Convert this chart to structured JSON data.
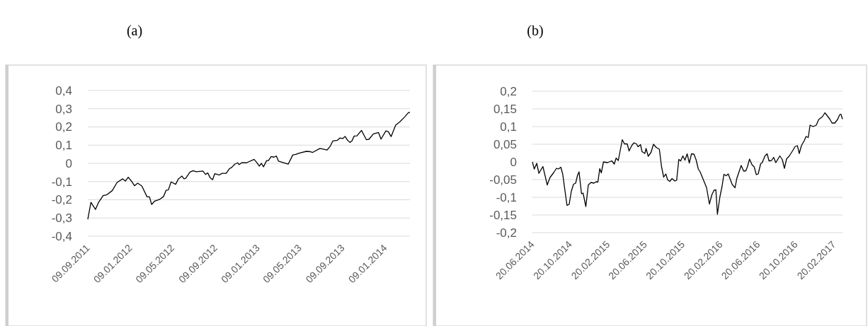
{
  "chart_data": [
    {
      "type": "line",
      "title": "(a)",
      "grid": "y",
      "xlim": [
        "2011-09-09",
        "2014-03-21"
      ],
      "ylim": [
        -0.4,
        0.4
      ],
      "xticks": [
        {
          "value": "2011-09-09",
          "label": "09.09.2011"
        },
        {
          "value": "2012-01-09",
          "label": "09.01.2012"
        },
        {
          "value": "2012-05-09",
          "label": "09.05.2012"
        },
        {
          "value": "2012-09-09",
          "label": "09.09.2012"
        },
        {
          "value": "2013-01-09",
          "label": "09.01.2013"
        },
        {
          "value": "2013-05-09",
          "label": "09.05.2013"
        },
        {
          "value": "2013-09-09",
          "label": "09.09.2013"
        },
        {
          "value": "2014-01-09",
          "label": "09.01.2014"
        }
      ],
      "yticks": [
        {
          "value": -0.4,
          "label": "-0,4"
        },
        {
          "value": -0.3,
          "label": "-0,3"
        },
        {
          "value": -0.2,
          "label": "-0,2"
        },
        {
          "value": -0.1,
          "label": "-0,1"
        },
        0,
        {
          "value": 0.1,
          "label": "0,1"
        },
        {
          "value": 0.2,
          "label": "0,2"
        },
        {
          "value": 0.3,
          "label": "0,3"
        },
        {
          "value": 0.4,
          "label": "0,4"
        }
      ],
      "series": [
        {
          "color": "#000000",
          "x": [
            "2011-09-09",
            "2011-09-18",
            "2011-10-01",
            "2011-10-10",
            "2011-10-23",
            "2011-11-03",
            "2011-11-18",
            "2011-12-02",
            "2011-12-18",
            "2011-12-26",
            "2012-01-03",
            "2012-01-12",
            "2012-01-21",
            "2012-01-30",
            "2012-02-11",
            "2012-02-26",
            "2012-03-04",
            "2012-03-10",
            "2012-03-19",
            "2012-04-01",
            "2012-04-13",
            "2012-04-21",
            "2012-04-27",
            "2012-05-05",
            "2012-05-18",
            "2012-05-26",
            "2012-06-05",
            "2012-06-11",
            "2012-06-16",
            "2012-06-28",
            "2012-07-07",
            "2012-07-16",
            "2012-08-04",
            "2012-08-12",
            "2012-08-18",
            "2012-08-25",
            "2012-09-01",
            "2012-09-07",
            "2012-09-20",
            "2012-09-28",
            "2012-10-10",
            "2012-10-19",
            "2012-10-26",
            "2012-11-04",
            "2012-11-12",
            "2012-11-16",
            "2012-11-24",
            "2012-12-07",
            "2012-12-29",
            "2013-01-05",
            "2013-01-13",
            "2013-01-19",
            "2013-01-25",
            "2013-02-03",
            "2013-02-08",
            "2013-02-16",
            "2013-02-24",
            "2013-03-03",
            "2013-03-09",
            "2013-04-06",
            "2013-04-19",
            "2013-04-27",
            "2013-05-09",
            "2013-05-28",
            "2013-06-09",
            "2013-06-15",
            "2013-07-06",
            "2013-07-26",
            "2013-08-04",
            "2013-08-12",
            "2013-08-25",
            "2013-09-01",
            "2013-09-09",
            "2013-09-16",
            "2013-09-23",
            "2013-09-30",
            "2013-10-06",
            "2013-10-12",
            "2013-10-20",
            "2013-11-02",
            "2013-11-16",
            "2013-11-24",
            "2013-12-06",
            "2013-12-21",
            "2013-12-28",
            "2014-01-11",
            "2014-01-18",
            "2014-01-26",
            "2014-02-08",
            "2014-02-20",
            "2014-03-06",
            "2014-03-16",
            "2014-03-21"
          ],
          "values": [
            -0.307,
            -0.214,
            -0.253,
            -0.214,
            -0.177,
            -0.172,
            -0.15,
            -0.105,
            -0.085,
            -0.097,
            -0.076,
            -0.097,
            -0.123,
            -0.109,
            -0.124,
            -0.184,
            -0.184,
            -0.226,
            -0.207,
            -0.199,
            -0.183,
            -0.147,
            -0.146,
            -0.102,
            -0.115,
            -0.085,
            -0.07,
            -0.085,
            -0.082,
            -0.048,
            -0.04,
            -0.046,
            -0.042,
            -0.061,
            -0.052,
            -0.079,
            -0.09,
            -0.057,
            -0.064,
            -0.055,
            -0.055,
            -0.03,
            -0.022,
            -0.004,
            0.003,
            -0.007,
            0.004,
            0.003,
            0.022,
            0.006,
            -0.015,
            0,
            -0.019,
            0.015,
            0.015,
            0.037,
            0.034,
            0.04,
            0.012,
            -0.004,
            0.046,
            0.049,
            0.057,
            0.066,
            0.064,
            0.06,
            0.082,
            0.073,
            0.093,
            0.123,
            0.127,
            0.139,
            0.136,
            0.148,
            0.127,
            0.115,
            0.124,
            0.15,
            0.151,
            0.181,
            0.13,
            0.133,
            0.162,
            0.169,
            0.133,
            0.178,
            0.174,
            0.147,
            0.21,
            0.228,
            0.255,
            0.277,
            0.281
          ]
        }
      ]
    },
    {
      "type": "line",
      "title": "(b)",
      "grid": "y",
      "xlim": [
        "2014-06-20",
        "2017-03-20"
      ],
      "ylim": [
        -0.2,
        0.2
      ],
      "xticks": [
        {
          "value": "2014-06-20",
          "label": "20.06.2014"
        },
        {
          "value": "2014-10-20",
          "label": "20.10.2014"
        },
        {
          "value": "2015-02-20",
          "label": "20.02.2015"
        },
        {
          "value": "2015-06-20",
          "label": "20.06.2015"
        },
        {
          "value": "2015-10-20",
          "label": "20.10.2015"
        },
        {
          "value": "2016-02-20",
          "label": "20.02.2016"
        },
        {
          "value": "2016-06-20",
          "label": "20.06.2016"
        },
        {
          "value": "2016-10-20",
          "label": "20.10.2016"
        },
        {
          "value": "2017-02-20",
          "label": "20.02.2017"
        }
      ],
      "yticks": [
        {
          "value": -0.2,
          "label": "-0,2"
        },
        {
          "value": -0.15,
          "label": "-0,15"
        },
        {
          "value": -0.1,
          "label": "-0,1"
        },
        {
          "value": -0.05,
          "label": "-0,05"
        },
        0,
        {
          "value": 0.05,
          "label": "0,05"
        },
        {
          "value": 0.1,
          "label": "0,1"
        },
        {
          "value": 0.15,
          "label": "0,15"
        },
        {
          "value": 0.2,
          "label": "0,2"
        }
      ],
      "series": [
        {
          "color": "#000000",
          "x": [
            "2014-06-20",
            "2014-06-26",
            "2014-07-04",
            "2014-07-11",
            "2014-07-24",
            "2014-08-07",
            "2014-08-16",
            "2014-08-28",
            "2014-09-06",
            "2014-09-12",
            "2014-09-20",
            "2014-09-26",
            "2014-10-10",
            "2014-10-17",
            "2014-10-24",
            "2014-10-31",
            "2014-11-07",
            "2014-11-13",
            "2014-11-18",
            "2014-11-26",
            "2014-12-01",
            "2014-12-10",
            "2014-12-18",
            "2014-12-27",
            "2015-01-05",
            "2015-01-12",
            "2015-01-18",
            "2015-01-24",
            "2015-01-29",
            "2015-02-05",
            "2015-02-18",
            "2015-03-04",
            "2015-03-12",
            "2015-03-18",
            "2015-03-25",
            "2015-04-07",
            "2015-04-14",
            "2015-04-23",
            "2015-04-29",
            "2015-05-08",
            "2015-05-15",
            "2015-05-23",
            "2015-05-28",
            "2015-06-05",
            "2015-06-10",
            "2015-06-19",
            "2015-06-23",
            "2015-06-30",
            "2015-07-09",
            "2015-07-17",
            "2015-07-26",
            "2015-08-05",
            "2015-08-12",
            "2015-08-19",
            "2015-08-26",
            "2015-09-01",
            "2015-09-08",
            "2015-09-15",
            "2015-09-24",
            "2015-09-30",
            "2015-10-07",
            "2015-10-13",
            "2015-10-20",
            "2015-10-27",
            "2015-11-03",
            "2015-11-10",
            "2015-11-17",
            "2015-11-25",
            "2015-12-02",
            "2015-12-09",
            "2015-12-15",
            "2016-01-05",
            "2016-01-14",
            "2016-01-22",
            "2016-01-29",
            "2016-02-04",
            "2016-02-09",
            "2016-02-17",
            "2016-02-24",
            "2016-03-01",
            "2016-03-08",
            "2016-03-15",
            "2016-03-28",
            "2016-04-06",
            "2016-04-12",
            "2016-04-26",
            "2016-05-04",
            "2016-05-11",
            "2016-05-16",
            "2016-05-23",
            "2016-05-31",
            "2016-06-07",
            "2016-06-14",
            "2016-06-20",
            "2016-06-28",
            "2016-07-03",
            "2016-07-12",
            "2016-07-19",
            "2016-07-25",
            "2016-08-02",
            "2016-08-09",
            "2016-08-16",
            "2016-08-29",
            "2016-09-06",
            "2016-09-13",
            "2016-09-20",
            "2016-09-28",
            "2016-10-09",
            "2016-10-18",
            "2016-10-25",
            "2016-10-31",
            "2016-11-07",
            "2016-11-16",
            "2016-11-22",
            "2016-11-29",
            "2016-12-05",
            "2016-12-15",
            "2016-12-25",
            "2017-01-02",
            "2017-01-14",
            "2017-01-22",
            "2017-01-31",
            "2017-02-07",
            "2017-02-14",
            "2017-02-23",
            "2017-03-04",
            "2017-03-11",
            "2017-03-15",
            "2017-03-20"
          ],
          "values": [
            0,
            -0.02,
            -0.004,
            -0.032,
            -0.013,
            -0.065,
            -0.044,
            -0.03,
            -0.018,
            -0.02,
            -0.015,
            -0.034,
            -0.123,
            -0.12,
            -0.083,
            -0.063,
            -0.06,
            -0.038,
            -0.028,
            -0.09,
            -0.088,
            -0.126,
            -0.065,
            -0.058,
            -0.06,
            -0.056,
            -0.057,
            -0.019,
            -0.031,
            0,
            -0.002,
            0.003,
            -0.006,
            0.011,
            0.004,
            0.063,
            0.051,
            0.051,
            0.031,
            0.047,
            0.054,
            0.051,
            0.043,
            0.049,
            0.029,
            0.024,
            0.038,
            0.016,
            0.027,
            0.05,
            0.041,
            0.036,
            -0.013,
            -0.043,
            -0.034,
            -0.051,
            -0.055,
            -0.047,
            -0.054,
            -0.052,
            0.007,
            0.003,
            0.017,
            0.005,
            0.023,
            -0.003,
            0.023,
            0.022,
            0.006,
            -0.02,
            -0.028,
            -0.073,
            -0.119,
            -0.093,
            -0.08,
            -0.079,
            -0.148,
            -0.099,
            -0.069,
            -0.035,
            -0.039,
            -0.034,
            -0.064,
            -0.073,
            -0.046,
            -0.01,
            -0.026,
            -0.025,
            -0.014,
            0.008,
            -0.008,
            -0.014,
            -0.036,
            -0.034,
            -0.005,
            -0.002,
            0.017,
            0.023,
            0.003,
            0.004,
            0.013,
            -0.002,
            0.017,
            0.007,
            -0.018,
            0.009,
            0.016,
            0.031,
            0.044,
            0.046,
            0.024,
            0.046,
            0.06,
            0.072,
            0.069,
            0.104,
            0.1,
            0.104,
            0.12,
            0.128,
            0.139,
            0.129,
            0.121,
            0.11,
            0.11,
            0.12,
            0.134,
            0.135,
            0.121
          ]
        }
      ]
    }
  ]
}
